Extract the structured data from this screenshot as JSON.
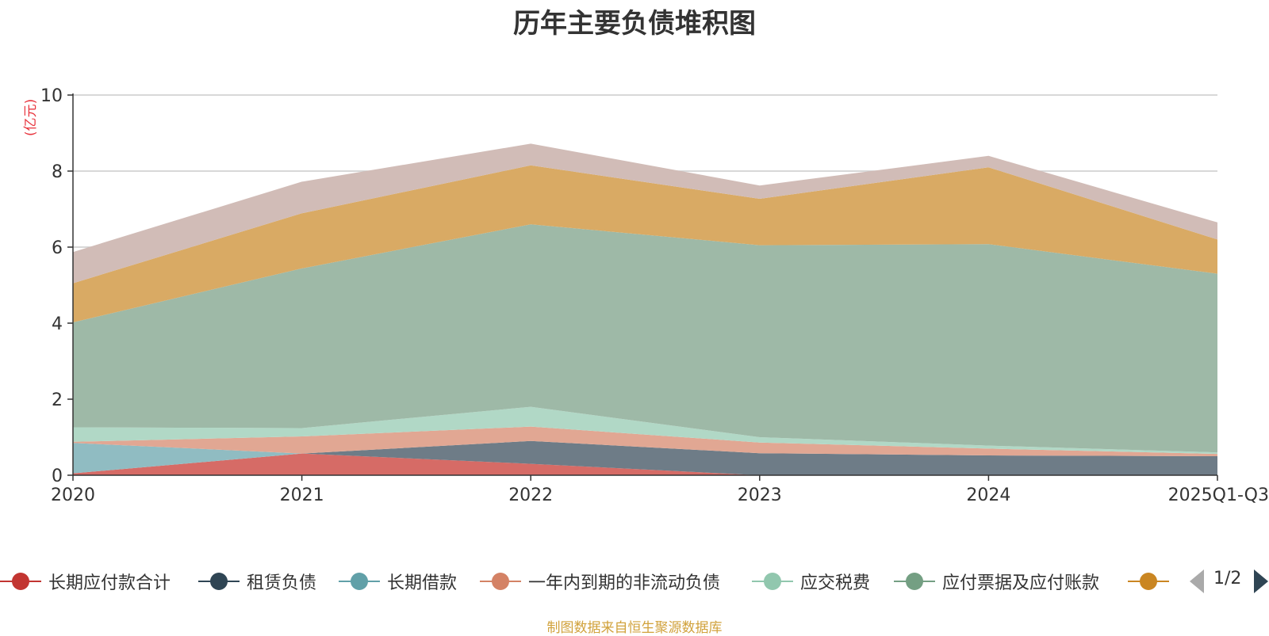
{
  "title": "历年主要负债堆积图",
  "source": "制图数据来自恒生聚源数据库",
  "unit": "(亿元)",
  "pager": {
    "text": "1/2"
  },
  "chart_data": {
    "type": "area",
    "stacked": true,
    "title": "历年主要负债堆积图",
    "ylabel": "(亿元)",
    "ylim": [
      0,
      10
    ],
    "yticks": [
      0,
      2,
      4,
      6,
      8,
      10
    ],
    "categories": [
      "2020",
      "2021",
      "2022",
      "2023",
      "2024",
      "2025Q1-Q3"
    ],
    "legend_position": "bottom",
    "series": [
      {
        "name": "长期应付款合计",
        "color": "#c23531",
        "area_color": "#d66b66",
        "values": [
          0.05,
          0.57,
          0.3,
          0.0,
          0.0,
          0.0
        ]
      },
      {
        "name": "租赁负债",
        "color": "#2f4554",
        "area_color": "#6e7c87",
        "values": [
          0.0,
          0.0,
          0.6,
          0.58,
          0.52,
          0.5
        ]
      },
      {
        "name": "长期借款",
        "color": "#61a0a8",
        "area_color": "#90bcc2",
        "values": [
          0.8,
          0.0,
          0.0,
          0.0,
          0.0,
          0.0
        ]
      },
      {
        "name": "一年内到期的非流动负债",
        "color": "#d48265",
        "area_color": "#e1a793",
        "values": [
          0.03,
          0.45,
          0.38,
          0.28,
          0.18,
          0.06
        ]
      },
      {
        "name": "应交税费",
        "color": "#91c7ae",
        "area_color": "#b1d8c6",
        "values": [
          0.38,
          0.22,
          0.52,
          0.14,
          0.08,
          0.04
        ]
      },
      {
        "name": "应付票据及应付账款",
        "color": "#749f83",
        "area_color": "#9eb9a7",
        "values": [
          2.76,
          4.2,
          4.8,
          5.05,
          5.3,
          4.7
        ]
      },
      {
        "name": "",
        "color": "#ca8622",
        "area_color": "#d9aa64",
        "values": [
          1.03,
          1.45,
          1.55,
          1.22,
          2.02,
          0.9
        ]
      },
      {
        "name": "",
        "color": "#bda29a",
        "area_color": "#d1bcb7",
        "values": [
          0.82,
          0.83,
          0.57,
          0.35,
          0.3,
          0.45
        ]
      }
    ]
  }
}
